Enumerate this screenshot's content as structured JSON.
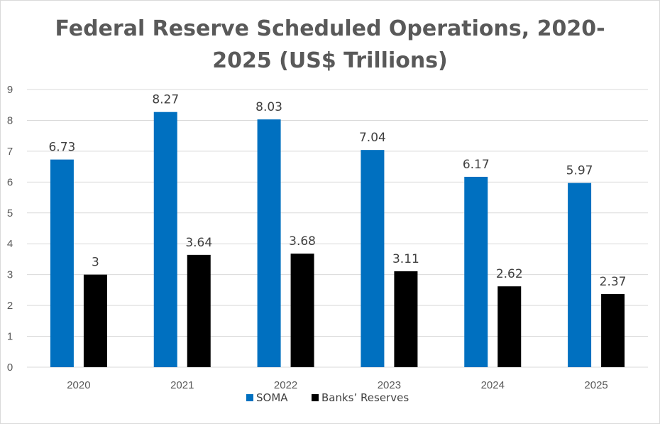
{
  "chart_data": {
    "type": "bar",
    "title_lines": [
      "Federal Reserve Scheduled Operations, 2020-",
      "2025 (US$ Trillions)"
    ],
    "categories": [
      "2020",
      "2021",
      "2022",
      "2023",
      "2024",
      "2025"
    ],
    "series": [
      {
        "name": "SOMA",
        "color": "#0070c0",
        "values": [
          6.73,
          8.27,
          8.03,
          7.04,
          6.17,
          5.97
        ],
        "labels": [
          "6.73",
          "8.27",
          "8.03",
          "7.04",
          "6.17",
          "5.97"
        ]
      },
      {
        "name": "Banks’ Reserves",
        "color": "#000000",
        "values": [
          3,
          3.64,
          3.68,
          3.11,
          2.62,
          2.37
        ],
        "labels": [
          "3",
          "3.64",
          "3.68",
          "3.11",
          "2.62",
          "2.37"
        ]
      }
    ],
    "ylim": [
      0,
      9
    ],
    "yticks": [
      "0",
      "1",
      "2",
      "3",
      "4",
      "5",
      "6",
      "7",
      "8",
      "9"
    ],
    "grid": true,
    "legend": "bottom",
    "grid_color": "#d9d9d9"
  }
}
